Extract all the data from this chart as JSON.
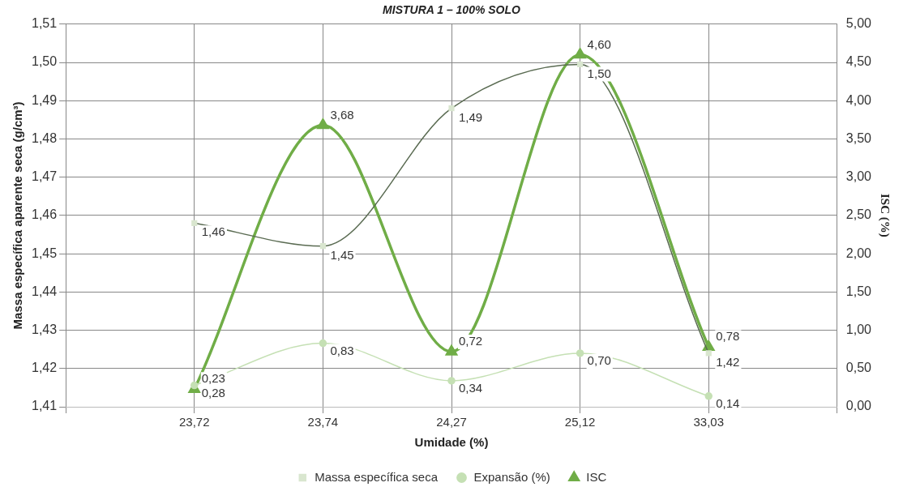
{
  "chart_data": {
    "type": "line",
    "title": "MISTURA 1 – 100% SOLO",
    "xlabel": "Umidade (%)",
    "ylabel": "Massa específica aparente seca (g/cm³)",
    "y2label": "ISC (%)",
    "categories": [
      null,
      "23,72",
      "23,74",
      "24,27",
      "25,12",
      "33,03",
      null
    ],
    "series": [
      {
        "name": "Massa específica seca",
        "color": "#5a6b52",
        "marker": "square",
        "values": [
          null,
          1.458,
          1.452,
          1.488,
          1.4995,
          1.424,
          null
        ],
        "value_labels": [
          null,
          "1,46",
          "1,45",
          "1,49",
          "1,50",
          "1,42",
          null
        ]
      },
      {
        "name": "Expansão (%)",
        "color": "#c5e0b4",
        "marker": "circle",
        "axis": "y2",
        "values": [
          null,
          0.28,
          0.83,
          0.34,
          0.7,
          0.14,
          null
        ],
        "value_labels": [
          null,
          "0,28",
          "0,83",
          "0,34",
          "0,70",
          "0,14",
          null
        ]
      },
      {
        "name": "ISC",
        "color": "#70ad47",
        "marker": "triangle",
        "axis": "y2",
        "values": [
          null,
          0.23,
          3.68,
          0.72,
          4.6,
          0.78,
          null
        ],
        "value_labels": [
          null,
          "0,23",
          "3,68",
          "0,72",
          "4,60",
          "0,78",
          null
        ]
      }
    ],
    "ylim": [
      1.41,
      1.51
    ],
    "yticks": [
      {
        "value": 1.41,
        "label": "1,41"
      },
      {
        "value": 1.42,
        "label": "1,42"
      },
      {
        "value": 1.43,
        "label": "1,43"
      },
      {
        "value": 1.44,
        "label": "1,44"
      },
      {
        "value": 1.45,
        "label": "1,45"
      },
      {
        "value": 1.46,
        "label": "1,46"
      },
      {
        "value": 1.47,
        "label": "1,47"
      },
      {
        "value": 1.48,
        "label": "1,48"
      },
      {
        "value": 1.49,
        "label": "1,49"
      },
      {
        "value": 1.5,
        "label": "1,50"
      },
      {
        "value": 1.51,
        "label": "1,51"
      }
    ],
    "y2lim": [
      0,
      5
    ],
    "y2ticks": [
      {
        "value": 0,
        "label": "0,00"
      },
      {
        "value": 0.5,
        "label": "0,50"
      },
      {
        "value": 1,
        "label": "1,00"
      },
      {
        "value": 1.5,
        "label": "1,50"
      },
      {
        "value": 2,
        "label": "2,00"
      },
      {
        "value": 2.5,
        "label": "2,50"
      },
      {
        "value": 3,
        "label": "3,00"
      },
      {
        "value": 3.5,
        "label": "3,50"
      },
      {
        "value": 4,
        "label": "4,00"
      },
      {
        "value": 4.5,
        "label": "4,50"
      },
      {
        "value": 5,
        "label": "5,00"
      }
    ],
    "grid": true,
    "legend": "bottom"
  }
}
